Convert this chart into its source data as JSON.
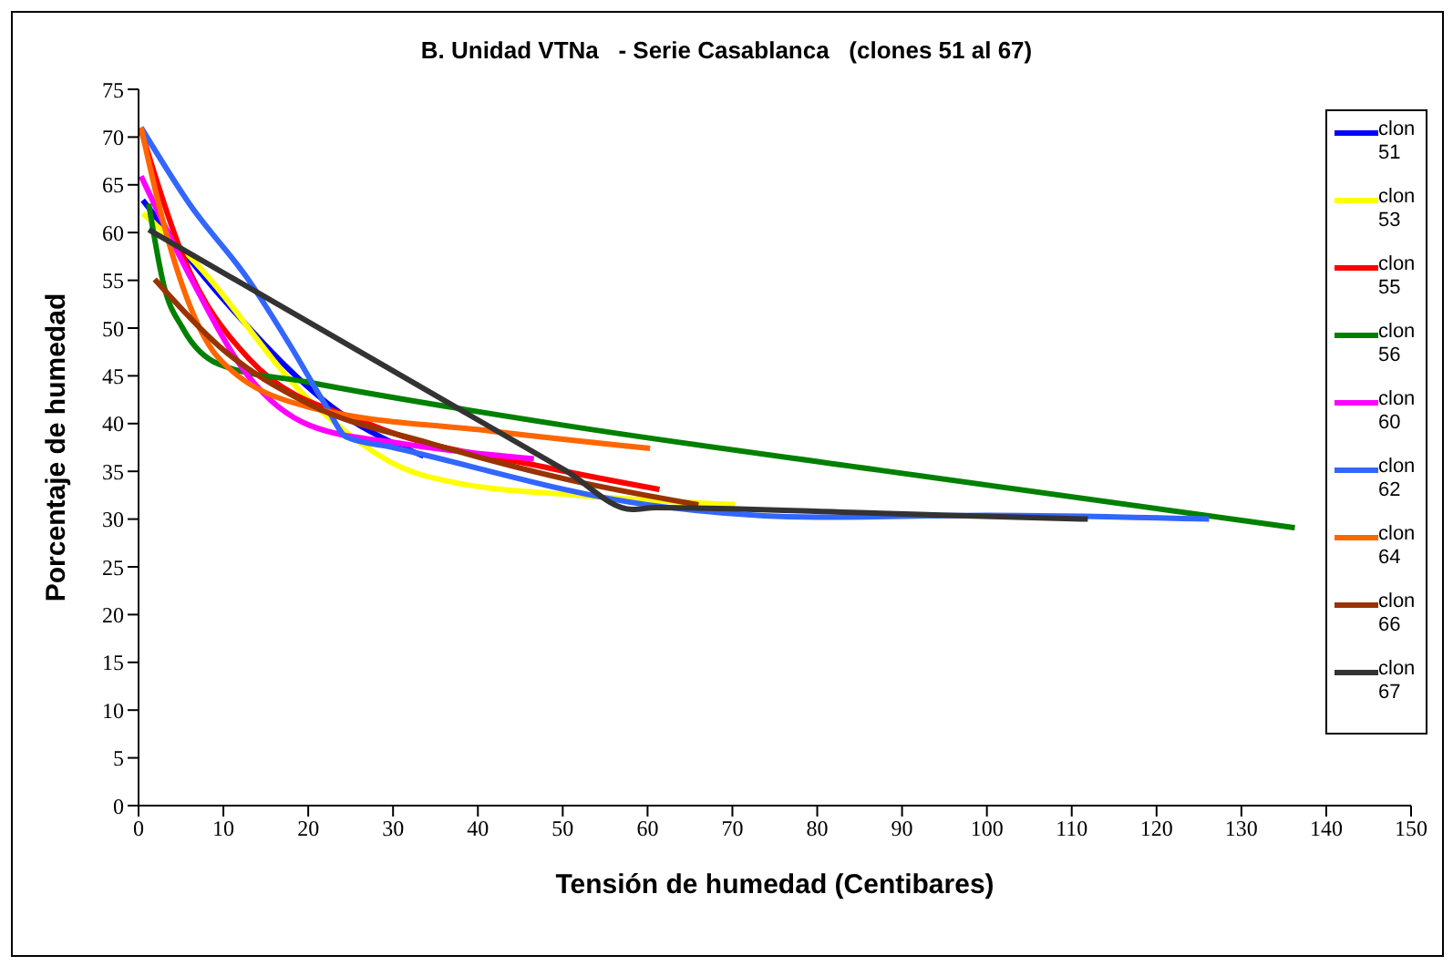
{
  "chart_data": {
    "type": "line",
    "title": "B. Unidad VTNa   - Serie Casablanca   (clones 51 al 67)",
    "xlabel": "Tensión de humedad (Centibares)",
    "ylabel": "Porcentaje de humedad",
    "xlim": [
      0,
      150
    ],
    "xticks": [
      0,
      10,
      20,
      30,
      40,
      50,
      60,
      70,
      80,
      90,
      100,
      110,
      120,
      130,
      140,
      150
    ],
    "ylim": [
      0,
      75
    ],
    "yticks": [
      0,
      5,
      10,
      15,
      20,
      25,
      30,
      35,
      40,
      45,
      50,
      55,
      60,
      65,
      70,
      75
    ],
    "grid": false,
    "legend": "right",
    "marker": "none",
    "line_style": "solid",
    "series": [
      {
        "name": "clon 51",
        "color": "#0000ff",
        "x": [
          0.5,
          10,
          23.8,
          33.6
        ],
        "values": [
          63.4,
          53,
          41.1,
          36.6
        ]
      },
      {
        "name": "clon 53",
        "color": "#ffff00",
        "x": [
          0.5,
          5.9,
          20.2,
          31,
          37.4,
          51.7,
          70.3
        ],
        "values": [
          62,
          57.6,
          42.4,
          35.4,
          33.8,
          32.5,
          31.5
        ]
      },
      {
        "name": "clon 55",
        "color": "#ff0000",
        "x": [
          0.3,
          5.2,
          13,
          27.3,
          48.1,
          61.4
        ],
        "values": [
          70.7,
          57.6,
          46.8,
          39.9,
          35.4,
          33.1
        ]
      },
      {
        "name": "clon 56",
        "color": "#008000",
        "x": [
          1.2,
          3,
          5.2,
          9.5,
          20.2,
          50.3,
          87.5,
          136.3
        ],
        "values": [
          63,
          54.4,
          50,
          46.2,
          44.3,
          39.8,
          35.1,
          29.1
        ]
      },
      {
        "name": "clon 60",
        "color": "#ff00ff",
        "x": [
          0.3,
          5.9,
          13,
          20.2,
          31,
          46.6
        ],
        "values": [
          65.9,
          55.7,
          44.9,
          39.8,
          37.9,
          36.3
        ]
      },
      {
        "name": "clon 62",
        "color": "#3366ff",
        "x": [
          0.3,
          6,
          13,
          18,
          22,
          24.5,
          30,
          60,
          80,
          100,
          126.2
        ],
        "values": [
          71,
          63,
          55,
          48,
          42,
          38.6,
          37.5,
          31.5,
          30.2,
          30.4,
          30
        ]
      },
      {
        "name": "clon 64",
        "color": "#ff6600",
        "x": [
          0.3,
          3,
          9.5,
          20.2,
          41.7,
          60.3
        ],
        "values": [
          71,
          60.8,
          46.8,
          41.7,
          39.2,
          37.4
        ]
      },
      {
        "name": "clon 66",
        "color": "#993300",
        "x": [
          1.9,
          9.5,
          20.2,
          34.5,
          50.3,
          66
        ],
        "values": [
          55.1,
          48.1,
          42,
          37.9,
          34.2,
          31.5
        ]
      },
      {
        "name": "clon 67",
        "color": "#333333",
        "x": [
          1.2,
          50.3,
          58.2,
          61,
          87.5,
          111.9
        ],
        "values": [
          60.3,
          35.1,
          31,
          31.2,
          30.6,
          30
        ]
      }
    ]
  }
}
